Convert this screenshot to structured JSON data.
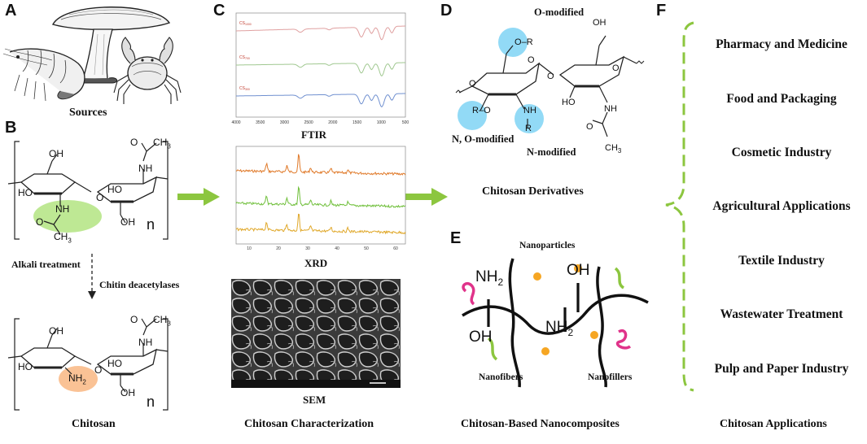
{
  "panels": {
    "A": {
      "letter": "A",
      "caption": "Sources"
    },
    "B": {
      "letter": "B",
      "arrow_label_1": "Alkali treatment",
      "arrow_label_2": "Chitin deacetylases",
      "chitin": {
        "oh1": "OH",
        "ho1": "HO",
        "nh": "NH",
        "o_acyl": "O",
        "ch3": "CH",
        "ch3_sub": "3",
        "oh2": "HO",
        "o_ring": "O",
        "oh3": "OH",
        "nh_top": "NH",
        "o_top": "O",
        "ch3_top": "CH",
        "ch3_top_sub": "3",
        "n": "n"
      },
      "chitosan": {
        "oh1": "OH",
        "ho1": "HO",
        "nh2": "NH",
        "nh2_sub": "2",
        "oh2": "HO",
        "o_ring": "O",
        "oh3": "OH",
        "nh_top": "NH",
        "o_top": "O",
        "ch3_top": "CH",
        "ch3_top_sub": "3",
        "n": "n"
      },
      "caption": "Chitosan"
    },
    "C": {
      "letter": "C",
      "ftir": "FTIR",
      "xrd": "XRD",
      "sem": "SEM",
      "caption": "Chitosan Characterization",
      "ftir_xticks": [
        "4000",
        "3500",
        "3000",
        "2500",
        "2000",
        "1500",
        "1000",
        "500"
      ],
      "ftir_series": [
        {
          "name": "CS",
          "sub": "1000"
        },
        {
          "name": "CS",
          "sub": "700"
        },
        {
          "name": "CS",
          "sub": "300"
        }
      ],
      "xrd_xticks": [
        "10",
        "20",
        "30",
        "40",
        "50",
        "60"
      ],
      "xrd_series_colors": [
        "#e07a2a",
        "#6fbf3a",
        "#e0a82a"
      ],
      "ftir_series_colors": [
        "#e0a0a0",
        "#a0c890",
        "#7090d0"
      ]
    },
    "D": {
      "letter": "D",
      "o_modified": "O-modified",
      "no_modified": "N, O-modified",
      "n_modified": "N-modified",
      "caption": "Chitosan Derivatives",
      "struct": {
        "o_r": "O",
        "r_top": "R",
        "o_left": "O",
        "o_link": "O",
        "o_ring1": "O",
        "o_ring2": "O",
        "ho": "HO",
        "oh": "OH",
        "nh": "NH",
        "r_n": "R",
        "nh2": "NH",
        "o_acyl": "O",
        "ch3": "CH",
        "ch3_sub": "3",
        "or_left": "O",
        "r_left": "R"
      }
    },
    "E": {
      "letter": "E",
      "nanoparticles": "Nanoparticles",
      "nanofibers": "Nanofibers",
      "nanofillers": "Nanofillers",
      "nh2_a": "NH",
      "nh2_a_sub": "2",
      "oh_a": "OH",
      "oh_b": "OH",
      "nh2_b": "NH",
      "nh2_b_sub": "2",
      "caption": "Chitosan-Based Nanocomposites"
    },
    "F": {
      "letter": "F",
      "caption": "Chitosan Applications",
      "items": [
        "Pharmacy and Medicine",
        "Food and Packaging",
        "Cosmetic Industry",
        "Agricultural Applications",
        "Textile Industry",
        "Wastewater Treatment",
        "Pulp and Paper Industry"
      ]
    }
  },
  "colors": {
    "arrow_green": "#8cc63f",
    "brace_green": "#8cc63f",
    "glow_blue": "#7fd3f5",
    "glow_green": "#a8e070",
    "glow_orange": "#f9b37a",
    "nano_dot": "#f6a623",
    "fiber_pink": "#e0338a",
    "fiber_green": "#8cc63f"
  },
  "icons": [
    "shrimp-illustration",
    "mushroom-illustration",
    "crab-illustration",
    "sem-micrograph"
  ]
}
